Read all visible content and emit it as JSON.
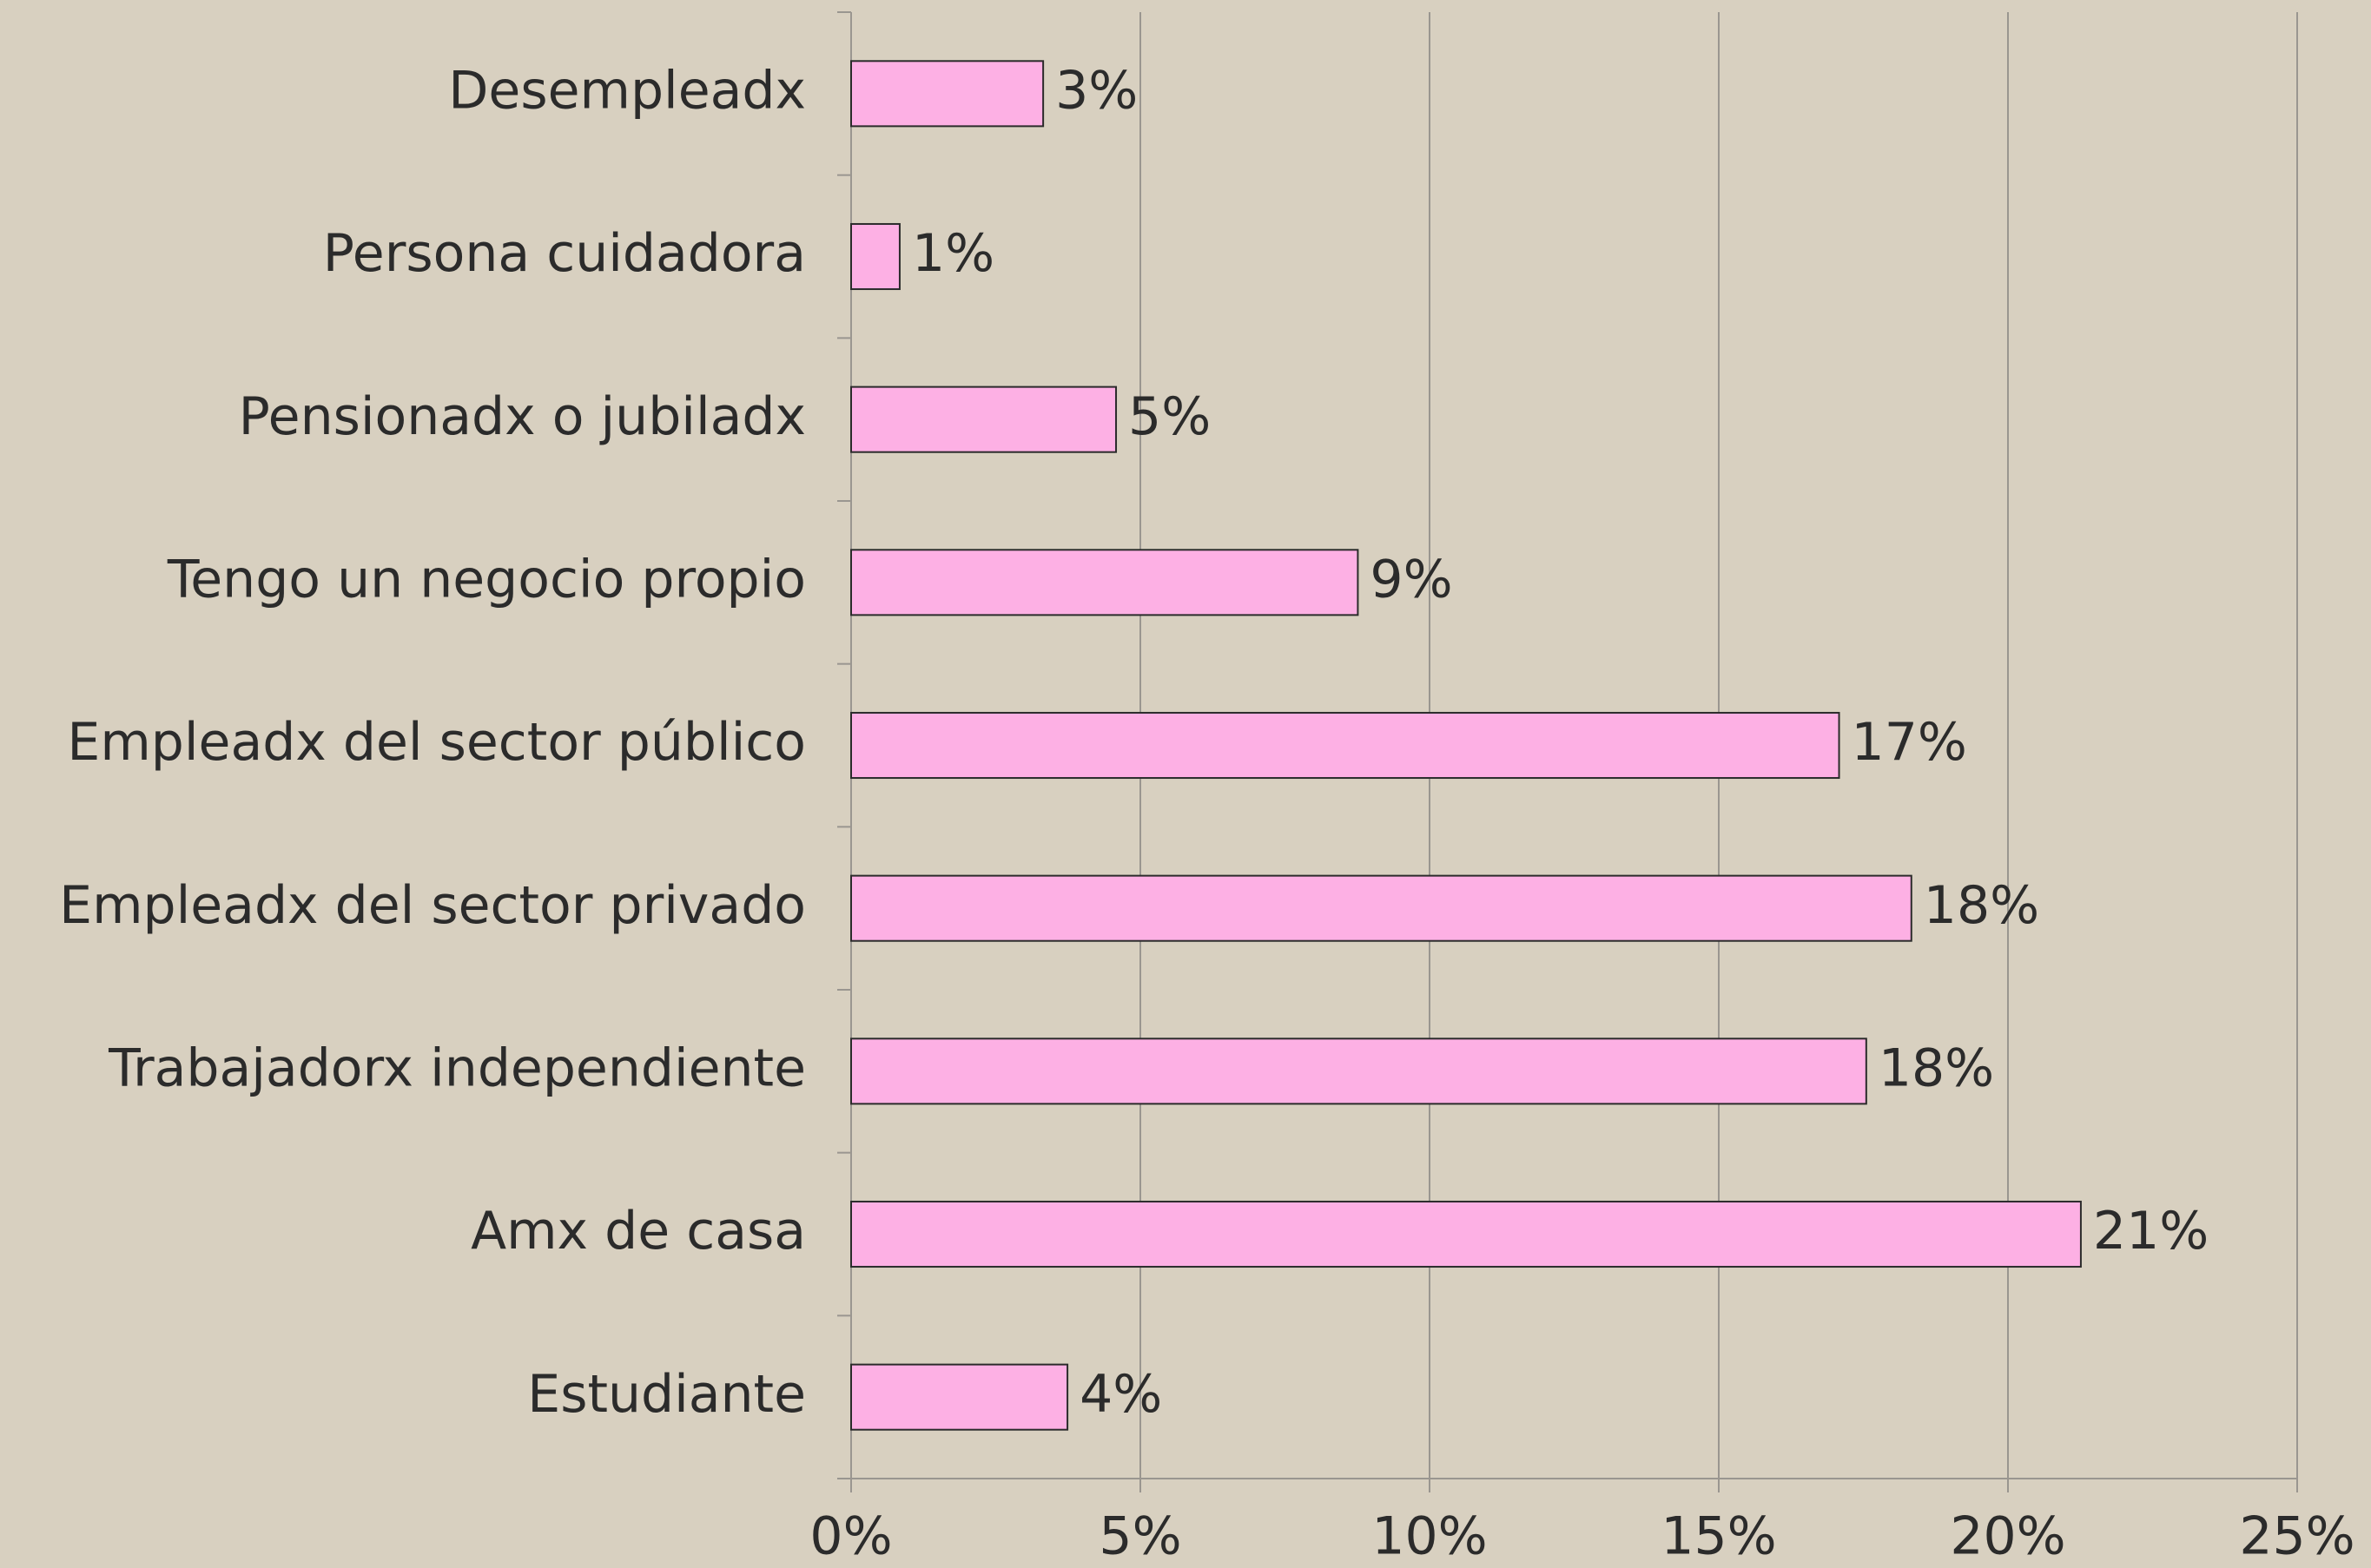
{
  "chart_data": {
    "type": "bar",
    "orientation": "horizontal",
    "categories": [
      "Desempleadx",
      "Persona cuidadora",
      "Pensionadx o jubiladx",
      "Tengo un negocio propio",
      "Empleadx del sector público",
      "Empleadx del sector privado",
      "Trabajadorx independiente",
      "Amx de casa",
      "Estudiante"
    ],
    "values": [
      3.32,
      0.84,
      4.58,
      8.76,
      17.08,
      18.33,
      17.55,
      21.26,
      3.74
    ],
    "value_labels": [
      "3%",
      "1%",
      "5%",
      "9%",
      "17%",
      "18%",
      "18%",
      "21%",
      "4%"
    ],
    "color": "#fdb0e4",
    "xlim": [
      0,
      25
    ],
    "xticks": [
      {
        "value": 0,
        "label": "0%"
      },
      {
        "value": 5,
        "label": "5%"
      },
      {
        "value": 10,
        "label": "10%"
      },
      {
        "value": 15,
        "label": "15%"
      },
      {
        "value": 20,
        "label": "20%"
      },
      {
        "value": 25,
        "label": "25%"
      }
    ],
    "grid": true
  }
}
